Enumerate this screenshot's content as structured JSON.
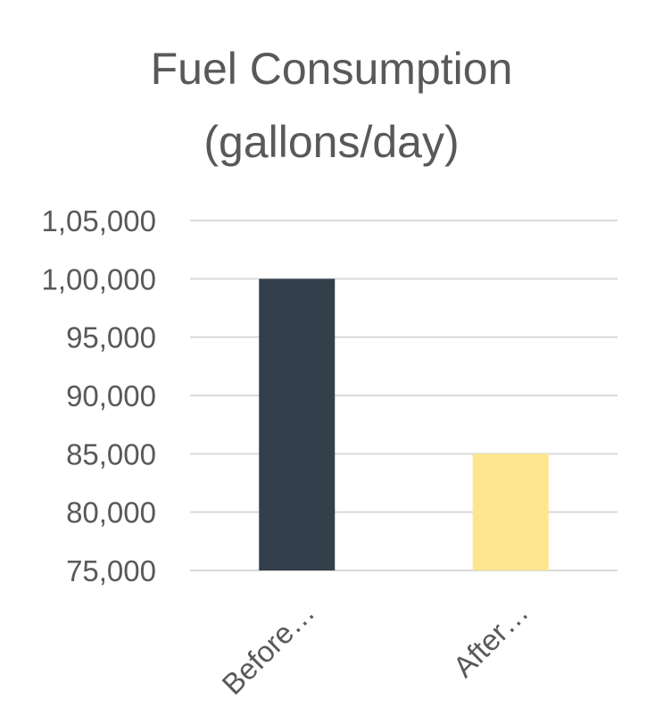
{
  "chart_data": {
    "type": "bar",
    "title_lines": [
      "Fuel Consumption",
      "(gallons/day)"
    ],
    "xlabel": "",
    "ylabel": "",
    "categories": [
      "Before…",
      "After…"
    ],
    "values": [
      100000,
      85000
    ],
    "colors": [
      "#333f4a",
      "#fde68e"
    ],
    "ylim": [
      75000,
      105000
    ],
    "yticks": [
      75000,
      80000,
      85000,
      90000,
      95000,
      100000,
      105000
    ],
    "ytick_labels": [
      "75,000",
      "80,000",
      "85,000",
      "90,000",
      "95,000",
      "1,00,000",
      "1,05,000"
    ],
    "grid": true,
    "legend": "none"
  }
}
